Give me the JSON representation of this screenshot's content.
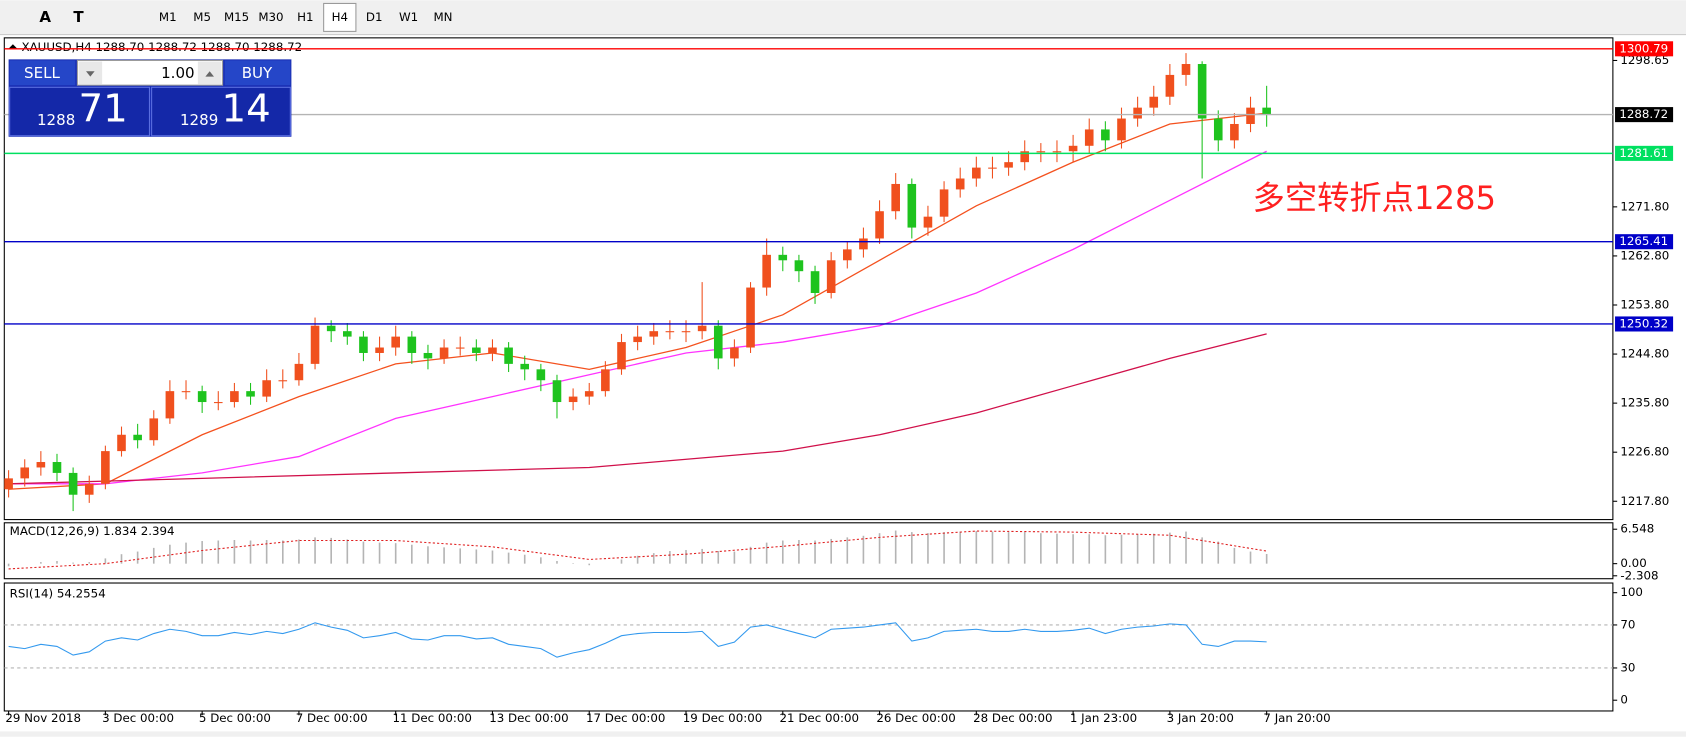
{
  "toolbar": {
    "tools": [
      "A",
      "T"
    ],
    "timeframes": [
      "M1",
      "M5",
      "M15",
      "M30",
      "H1",
      "H4",
      "D1",
      "W1",
      "MN"
    ],
    "selected": 5
  },
  "trade_panel": {
    "sell": "SELL",
    "buy": "BUY",
    "lot": "1.00",
    "bid": "1288",
    "bid_big": "71",
    "ask": "1289",
    "ask_big": "14"
  },
  "chart_data": {
    "type": "candlestick",
    "title": "XAUUSD,H4  1288.70 1288.72 1288.70 1288.72",
    "annotation": "多空转折点1285",
    "up_color": "#f0501e",
    "down_color": "#1ec31e",
    "categories": [
      "29 Nov 2018",
      null,
      null,
      null,
      null,
      null,
      "3 Dec 00:00",
      null,
      null,
      null,
      null,
      null,
      "5 Dec 00:00",
      null,
      null,
      null,
      null,
      null,
      "7 Dec 00:00",
      null,
      null,
      null,
      null,
      null,
      "11 Dec 00:00",
      null,
      null,
      null,
      null,
      null,
      "13 Dec 00:00",
      null,
      null,
      null,
      null,
      null,
      "17 Dec 00:00",
      null,
      null,
      null,
      null,
      null,
      "19 Dec 00:00",
      null,
      null,
      null,
      null,
      null,
      "21 Dec 00:00",
      null,
      null,
      null,
      null,
      null,
      "26 Dec 00:00",
      null,
      null,
      null,
      null,
      null,
      "28 Dec 00:00",
      null,
      null,
      null,
      null,
      null,
      "1 Jan 23:00",
      null,
      null,
      null,
      null,
      null,
      "3 Jan 20:00",
      null,
      null,
      null,
      null,
      null,
      "7 Jan 20:00"
    ],
    "open": [
      1220,
      1222,
      1224,
      1225,
      1223,
      1219,
      1221,
      1227,
      1230,
      1229,
      1233,
      1238,
      1238,
      1236,
      1236,
      1238,
      1237,
      1240,
      1240,
      1243,
      1250,
      1249,
      1248,
      1245,
      1246,
      1248,
      1245,
      1244,
      1246,
      1246,
      1245,
      1246,
      1243,
      1242,
      1240,
      1236,
      1237,
      1238,
      1242,
      1247,
      1248,
      1249,
      1249,
      1249,
      1250,
      1244,
      1246,
      1257,
      1263,
      1262,
      1260,
      1256,
      1262,
      1264,
      1266,
      1271,
      1276,
      1268,
      1270,
      1275,
      1277,
      1279,
      1279,
      1280,
      1282,
      1282,
      1282,
      1283,
      1286,
      1284,
      1288,
      1290,
      1292,
      1296,
      1298,
      1288,
      1284,
      1287,
      1290
    ],
    "high": [
      1223.5,
      1225.5,
      1227,
      1226.5,
      1224,
      1222.5,
      1228,
      1231.5,
      1232,
      1234.5,
      1240,
      1240,
      1239,
      1238,
      1239.5,
      1239.5,
      1242,
      1242,
      1245,
      1251.5,
      1251,
      1250.5,
      1249,
      1248,
      1250,
      1249,
      1246.5,
      1247.5,
      1248,
      1247.5,
      1247.5,
      1247,
      1244.5,
      1243,
      1241,
      1238.5,
      1239.5,
      1243.5,
      1248.5,
      1250,
      1250.5,
      1251,
      1251,
      1258,
      1251,
      1247.5,
      1258,
      1266,
      1264.5,
      1263,
      1261,
      1263.5,
      1265.5,
      1268,
      1273,
      1278,
      1277,
      1272,
      1276.5,
      1279,
      1281,
      1281,
      1282,
      1284,
      1283.5,
      1284,
      1285,
      1288,
      1287.5,
      1290,
      1292,
      1294,
      1298,
      1300,
      1298.5,
      1289.5,
      1289,
      1292,
      1294
    ],
    "low": [
      1218.5,
      1220.5,
      1222.5,
      1221.5,
      1216,
      1217.5,
      1220,
      1226,
      1227.5,
      1228,
      1232,
      1236.5,
      1234,
      1234.5,
      1235,
      1235.5,
      1236,
      1238.5,
      1239,
      1242,
      1247,
      1246.5,
      1243.5,
      1243.5,
      1244.5,
      1243,
      1242,
      1243,
      1244.5,
      1243.5,
      1243.5,
      1241.5,
      1240,
      1238,
      1233,
      1234.5,
      1235.5,
      1237,
      1241,
      1245.5,
      1246.5,
      1247.5,
      1247,
      1247.5,
      1242,
      1242.5,
      1245,
      1255.5,
      1260,
      1258,
      1254,
      1255,
      1260.5,
      1262.5,
      1265,
      1269.5,
      1266,
      1266.5,
      1269,
      1273.5,
      1275.5,
      1277,
      1277.5,
      1278.5,
      1280,
      1280,
      1280,
      1281.5,
      1282,
      1282.5,
      1286.5,
      1288.5,
      1290.5,
      1294,
      1277,
      1282,
      1282.5,
      1285.5,
      1286.5
    ],
    "close": [
      1222,
      1224,
      1225,
      1223,
      1219,
      1221,
      1227,
      1230,
      1229,
      1233,
      1238,
      1238,
      1236,
      1236,
      1238,
      1237,
      1240,
      1240,
      1243,
      1250,
      1249,
      1248,
      1245,
      1246,
      1248,
      1245,
      1244,
      1246,
      1246,
      1245,
      1246,
      1243,
      1242,
      1240,
      1236,
      1237,
      1238,
      1242,
      1247,
      1248,
      1249,
      1249,
      1249,
      1250,
      1244,
      1246,
      1257,
      1263,
      1262,
      1260,
      1256,
      1262,
      1264,
      1266,
      1271,
      1276,
      1268,
      1270,
      1275,
      1277,
      1279,
      1279,
      1280,
      1282,
      1282,
      1282,
      1283,
      1286,
      1284,
      1288,
      1290,
      1292,
      1296,
      1298,
      1288,
      1284,
      1287,
      1290,
      1288.7
    ],
    "ylim": [
      1214.64,
      1302.6
    ],
    "yticks": [
      {
        "value": 1217.8,
        "label": "1217.80"
      },
      {
        "value": 1226.8,
        "label": "1226.80"
      },
      {
        "value": 1235.8,
        "label": "1235.80"
      },
      {
        "value": 1244.8,
        "label": "1244.80"
      },
      {
        "value": 1253.8,
        "label": "1253.80"
      },
      {
        "value": 1262.8,
        "label": "1262.80"
      },
      {
        "value": 1271.8,
        "label": "1271.80"
      },
      1298.65
    ],
    "overlays": [
      {
        "color": "#f4511e",
        "x": [
          0,
          6,
          12,
          18,
          24,
          30,
          36,
          42,
          48,
          54,
          60,
          66,
          72,
          78
        ],
        "values": [
          1220,
          1221,
          1230,
          1237,
          1243,
          1245,
          1242,
          1246,
          1252,
          1262,
          1272,
          1280,
          1287,
          1289
        ]
      },
      {
        "color": "#ff33ff",
        "x": [
          0,
          6,
          12,
          18,
          24,
          30,
          36,
          42,
          48,
          54,
          60,
          66,
          72,
          78
        ],
        "values": [
          1221,
          1221,
          1223,
          1226,
          1233,
          1237,
          1241,
          1245,
          1247,
          1250,
          1256,
          1264,
          1273,
          1282
        ]
      },
      {
        "color": "#d0104a",
        "x": [
          0,
          12,
          24,
          36,
          48,
          54,
          60,
          66,
          72,
          78
        ],
        "values": [
          1221,
          1222,
          1223,
          1224,
          1227,
          1230,
          1234,
          1239,
          1244,
          1248.5
        ]
      }
    ],
    "levels": [
      {
        "value": 1300.79,
        "color": "#ff0000"
      },
      {
        "value": 1288.72,
        "color": "#b4b4b4",
        "box": "#000000"
      },
      {
        "value": 1281.61,
        "color": "#00e060"
      },
      {
        "value": 1265.41,
        "color": "#0000c8"
      },
      {
        "value": 1250.32,
        "color": "#0000c8"
      }
    ],
    "macd": {
      "label": "MACD(12,26,9) 1.834 2.394",
      "color": "#b4b4b4",
      "signal_color": "#e02020",
      "histogram": [
        -0.5,
        0.0,
        0.3,
        0.5,
        0.2,
        0.3,
        1.0,
        1.8,
        2.3,
        3.0,
        3.6,
        4.0,
        4.3,
        4.4,
        4.5,
        4.4,
        4.5,
        4.4,
        4.6,
        5.0,
        4.9,
        4.6,
        4.2,
        4.0,
        3.9,
        3.6,
        3.3,
        3.1,
        2.9,
        2.7,
        2.5,
        2.1,
        1.7,
        1.2,
        0.5,
        0.1,
        -0.3,
        0.0,
        0.8,
        1.5,
        2.0,
        2.4,
        2.6,
        2.8,
        2.4,
        2.3,
        3.2,
        4.0,
        4.4,
        4.5,
        4.4,
        4.7,
        5.0,
        5.3,
        5.8,
        6.3,
        6.0,
        5.8,
        6.0,
        6.1,
        6.2,
        6.1,
        6.0,
        6.0,
        5.8,
        5.7,
        5.6,
        5.6,
        5.4,
        5.5,
        5.6,
        5.7,
        5.9,
        6.1,
        5.0,
        4.2,
        3.0,
        2.3,
        1.834
      ],
      "signal": {
        "x": [
          0,
          6,
          12,
          18,
          24,
          30,
          36,
          42,
          48,
          54,
          60,
          66,
          72,
          78
        ],
        "values": [
          -1,
          0,
          2.5,
          4.4,
          4.4,
          3.2,
          0.8,
          1.8,
          3.3,
          5.0,
          6.2,
          6.0,
          5.4,
          2.394
        ]
      },
      "ylim": [
        -2.66,
        7.77
      ],
      "yticks": [
        6.548,
        {
          "value": 0,
          "label": "0.00"
        },
        -2.308
      ]
    },
    "rsi": {
      "label": "RSI(14) 54.2554",
      "color": "#3399ee",
      "values": [
        50,
        48,
        52,
        50,
        42,
        45,
        55,
        58,
        56,
        62,
        66,
        64,
        60,
        60,
        63,
        61,
        64,
        62,
        66,
        72,
        68,
        65,
        58,
        60,
        63,
        57,
        56,
        60,
        60,
        57,
        58,
        52,
        50,
        48,
        40,
        44,
        47,
        53,
        60,
        62,
        63,
        63,
        63,
        64,
        50,
        54,
        68,
        70,
        66,
        62,
        58,
        66,
        67,
        68,
        70,
        72,
        55,
        58,
        64,
        65,
        66,
        64,
        64,
        66,
        64,
        64,
        65,
        67,
        62,
        66,
        68,
        69,
        71,
        70,
        52,
        50,
        55,
        55,
        54.2554
      ],
      "ylim": [
        -9,
        108
      ],
      "yticks": [
        100,
        70,
        30,
        0
      ],
      "levels": [
        70,
        30
      ]
    }
  }
}
